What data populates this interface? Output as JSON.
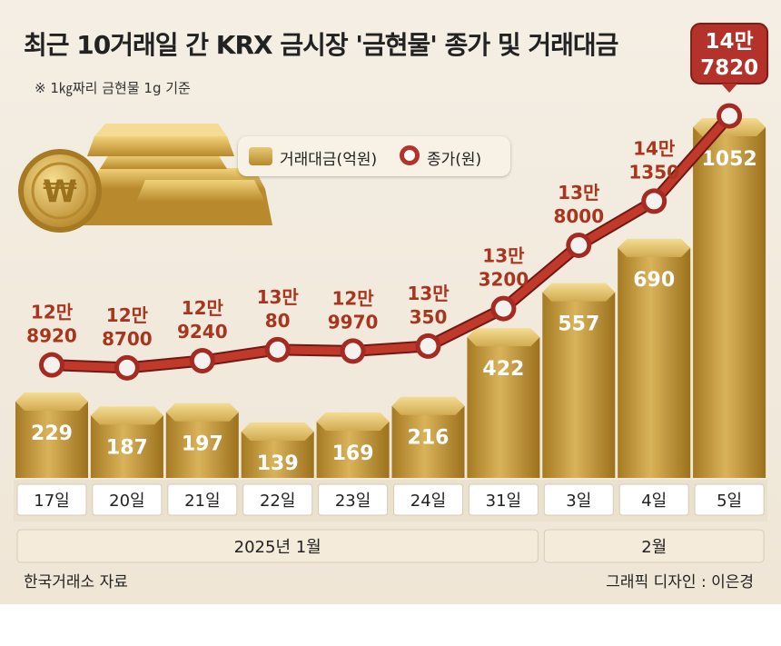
{
  "title": "최근 10거래일 간 KRX 금시장 '금현물' 종가 및 거래대금",
  "subtitle": "※ 1㎏짜리 금현물 1g 기준",
  "legend": {
    "bar": "거래대금(억원)",
    "line": "종가(원)"
  },
  "source": "한국거래소 자료",
  "credit": "그래픽 디자인 : 이은경",
  "colors": {
    "gold": "#c9a244",
    "line": "#b4322a",
    "label": "#a8361f"
  },
  "chart_data": {
    "type": "bar+line",
    "categories": [
      "17일",
      "20일",
      "21일",
      "22일",
      "23일",
      "24일",
      "31일",
      "3일",
      "4일",
      "5일"
    ],
    "months": [
      {
        "label": "2025년 1월",
        "span": [
          0,
          6
        ]
      },
      {
        "label": "2월",
        "span": [
          7,
          9
        ]
      }
    ],
    "series": [
      {
        "name": "거래대금(억원)",
        "type": "bar",
        "values": [
          229,
          187,
          197,
          139,
          169,
          216,
          422,
          557,
          690,
          1052
        ]
      },
      {
        "name": "종가(원)",
        "type": "line",
        "values": [
          128920,
          128700,
          129240,
          130080,
          129970,
          130350,
          133200,
          138000,
          141350,
          147820
        ],
        "labels": [
          [
            "12만",
            "8920"
          ],
          [
            "12만",
            "8700"
          ],
          [
            "12만",
            "9240"
          ],
          [
            "13만",
            "80"
          ],
          [
            "12만",
            "9970"
          ],
          [
            "13만",
            "350"
          ],
          [
            "13만",
            "3200"
          ],
          [
            "13만",
            "8000"
          ],
          [
            "14만",
            "1350"
          ],
          [
            "14만",
            "7820"
          ]
        ]
      }
    ]
  }
}
